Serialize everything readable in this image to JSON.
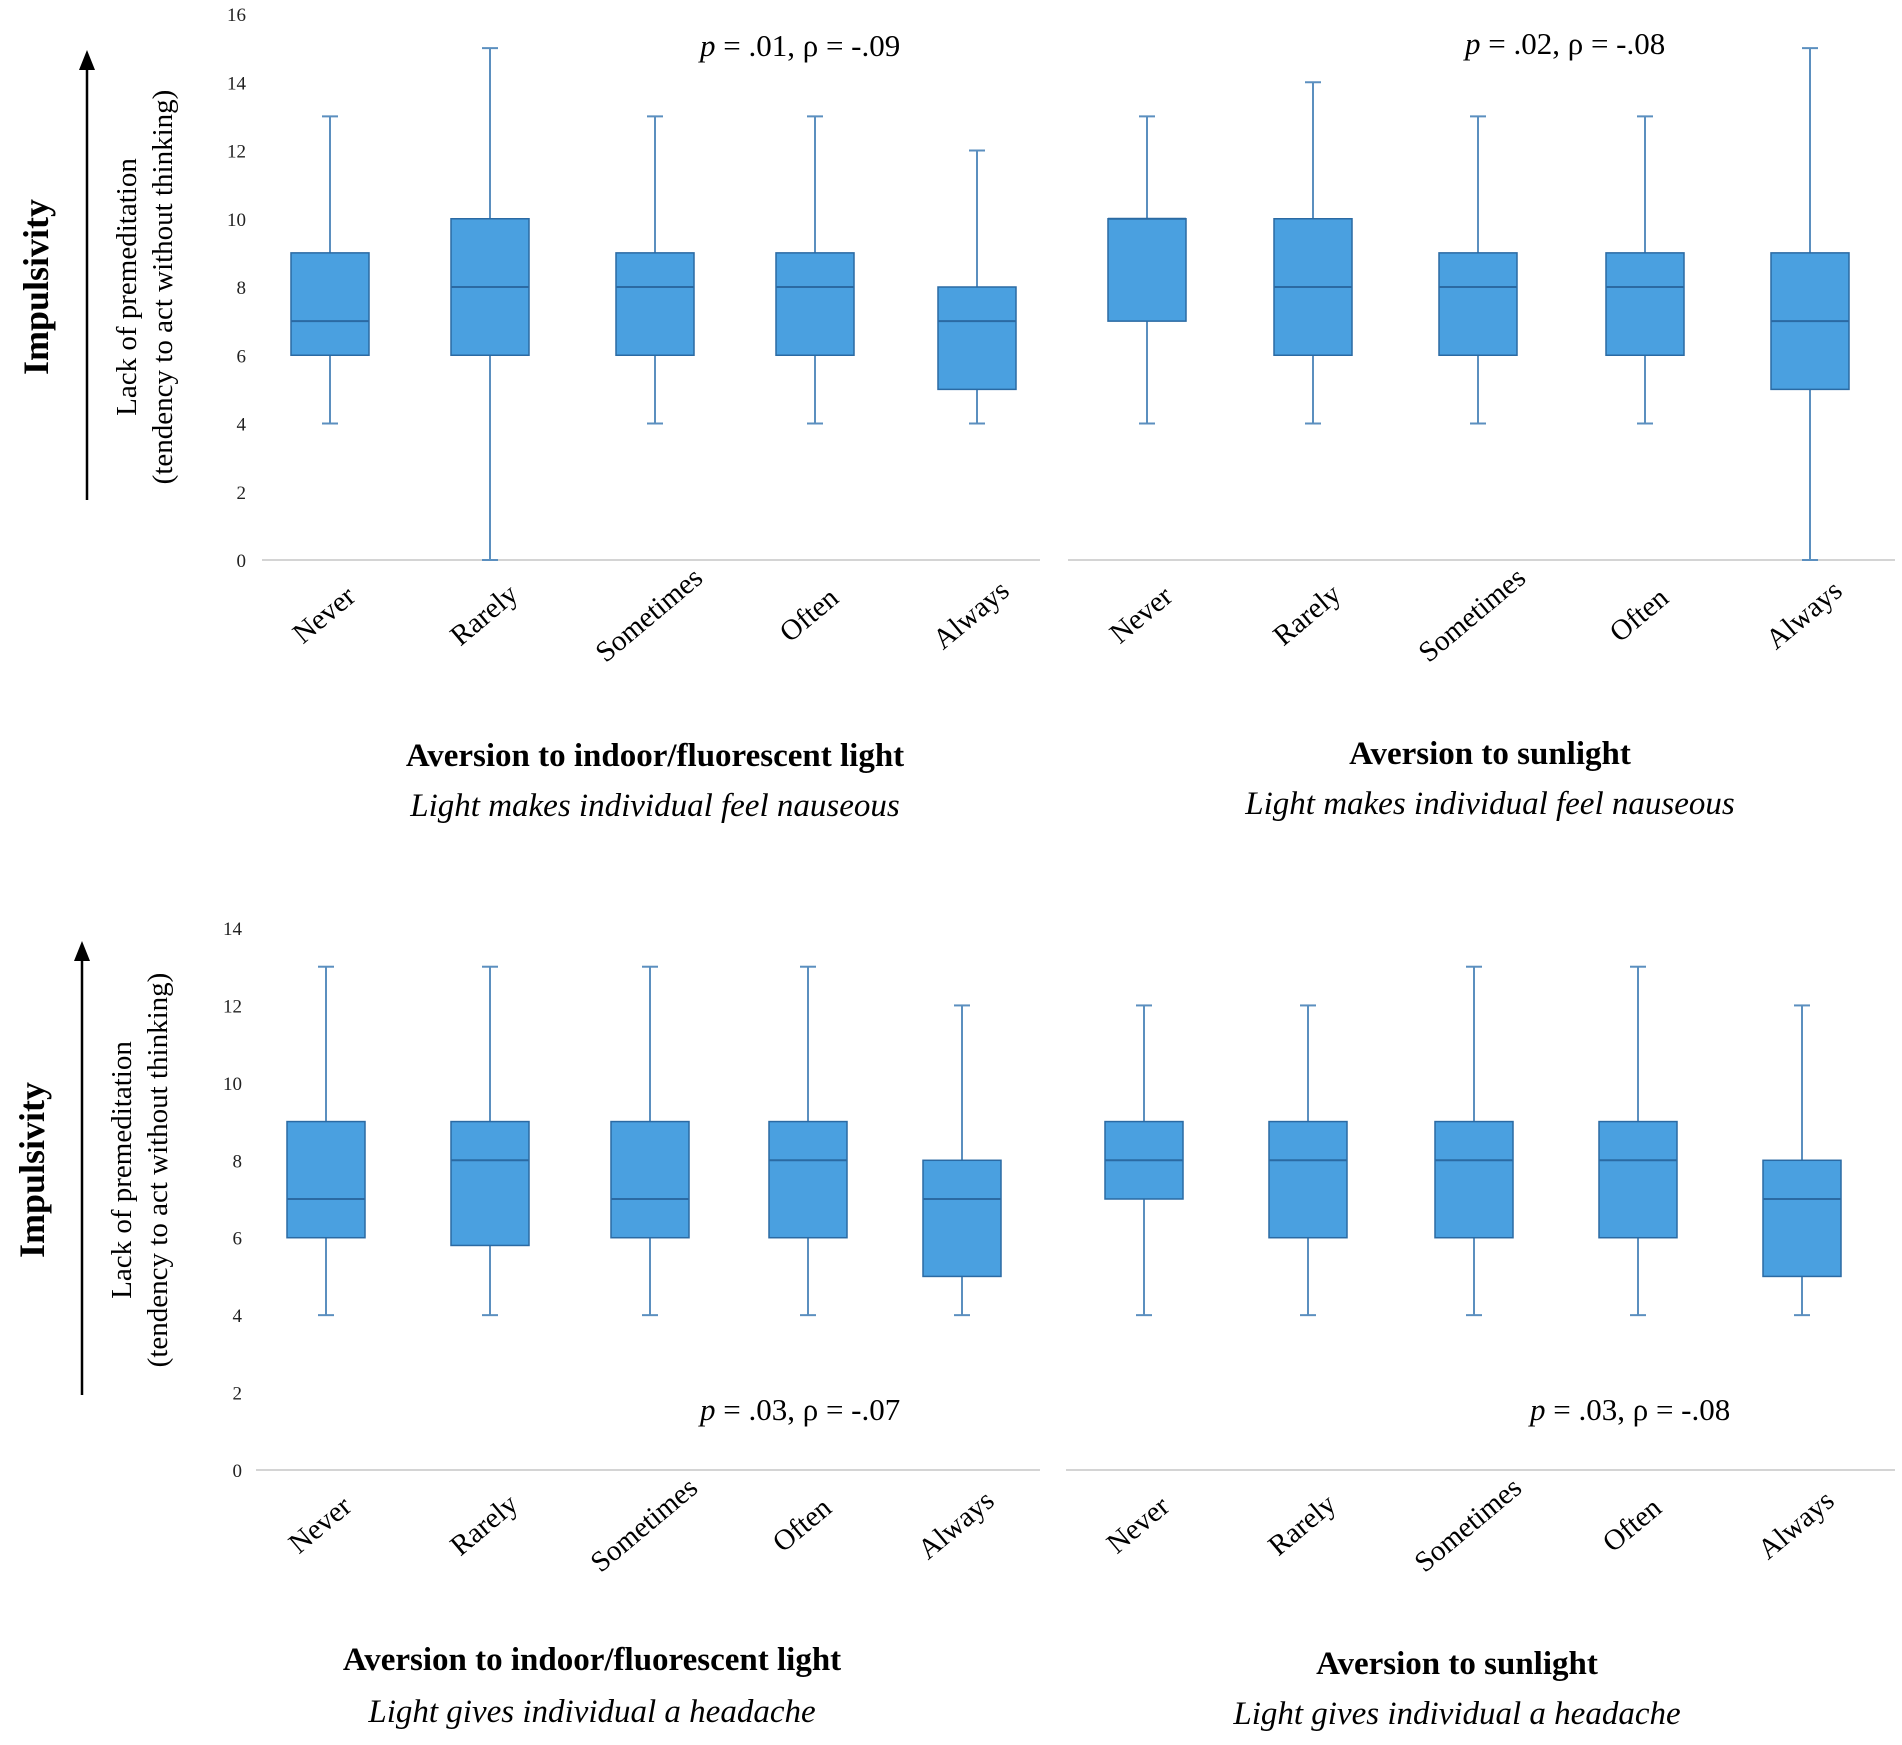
{
  "colors": {
    "box_fill": "#4aa0e0",
    "box_stroke": "#2b6aa3",
    "whisker": "#5b8fbf",
    "axis": "#d4d4d4",
    "text": "#000000"
  },
  "figure": {
    "impulsivity_label": "Impulsivity",
    "ylabel_line1": "Lack of premeditation",
    "ylabel_line2": "(tendency to act without thinking)"
  },
  "chart_data": [
    {
      "type": "box",
      "panel": "top-left",
      "title": "Aversion to indoor/fluorescent light",
      "subtitle": "Light makes individual feel nauseous",
      "stat": "p = .01, ρ = -.09",
      "stat_p": "p",
      "stat_rest": " = .01, ρ = -.09",
      "ylim": [
        0,
        16
      ],
      "yticks": [
        0,
        2,
        4,
        6,
        8,
        10,
        12,
        14,
        16
      ],
      "categories": [
        "Never",
        "Rarely",
        "Sometimes",
        "Often",
        "Always"
      ],
      "boxes": [
        {
          "min": 4,
          "q1": 6,
          "median": 7,
          "q3": 9,
          "max": 13
        },
        {
          "min": 0,
          "q1": 6,
          "median": 8,
          "q3": 10,
          "max": 15
        },
        {
          "min": 4,
          "q1": 6,
          "median": 8,
          "q3": 9,
          "max": 13
        },
        {
          "min": 4,
          "q1": 6,
          "median": 8,
          "q3": 9,
          "max": 13
        },
        {
          "min": 4,
          "q1": 5,
          "median": 7,
          "q3": 8,
          "max": 12
        }
      ]
    },
    {
      "type": "box",
      "panel": "top-right",
      "title": "Aversion to sunlight",
      "subtitle": "Light makes individual feel nauseous",
      "stat": "p = .02, ρ = -.08",
      "stat_p": "p",
      "stat_rest": " = .02, ρ = -.08",
      "ylim": [
        0,
        16
      ],
      "categories": [
        "Never",
        "Rarely",
        "Sometimes",
        "Often",
        "Always"
      ],
      "boxes": [
        {
          "min": 4,
          "q1": 7,
          "median": 10,
          "q3": 10,
          "max": 13
        },
        {
          "min": 4,
          "q1": 6,
          "median": 8,
          "q3": 10,
          "max": 14
        },
        {
          "min": 4,
          "q1": 6,
          "median": 8,
          "q3": 9,
          "max": 13
        },
        {
          "min": 4,
          "q1": 6,
          "median": 8,
          "q3": 9,
          "max": 13
        },
        {
          "min": 0,
          "q1": 5,
          "median": 7,
          "q3": 9,
          "max": 15
        }
      ]
    },
    {
      "type": "box",
      "panel": "bottom-left",
      "title": "Aversion to indoor/fluorescent light",
      "subtitle": "Light gives individual a headache",
      "stat": "p = .03, ρ = -.07",
      "stat_p": "p",
      "stat_rest": " = .03, ρ = -.07",
      "ylim": [
        0,
        14
      ],
      "yticks": [
        0,
        2,
        4,
        6,
        8,
        10,
        12,
        14
      ],
      "categories": [
        "Never",
        "Rarely",
        "Sometimes",
        "Often",
        "Always"
      ],
      "boxes": [
        {
          "min": 4,
          "q1": 6,
          "median": 7,
          "q3": 9,
          "max": 13
        },
        {
          "min": 4,
          "q1": 5.8,
          "median": 8,
          "q3": 9,
          "max": 13
        },
        {
          "min": 4,
          "q1": 6,
          "median": 7,
          "q3": 9,
          "max": 13
        },
        {
          "min": 4,
          "q1": 6,
          "median": 8,
          "q3": 9,
          "max": 13
        },
        {
          "min": 4,
          "q1": 5,
          "median": 7,
          "q3": 8,
          "max": 12
        }
      ]
    },
    {
      "type": "box",
      "panel": "bottom-right",
      "title": "Aversion to sunlight",
      "subtitle": "Light gives individual a headache",
      "stat": "p = .03, ρ = -.08",
      "stat_p": "p",
      "stat_rest": " = .03, ρ = -.08",
      "ylim": [
        0,
        14
      ],
      "categories": [
        "Never",
        "Rarely",
        "Sometimes",
        "Often",
        "Always"
      ],
      "boxes": [
        {
          "min": 4,
          "q1": 7,
          "median": 8,
          "q3": 9,
          "max": 12
        },
        {
          "min": 4,
          "q1": 6,
          "median": 8,
          "q3": 9,
          "max": 12
        },
        {
          "min": 4,
          "q1": 6,
          "median": 8,
          "q3": 9,
          "max": 13
        },
        {
          "min": 4,
          "q1": 6,
          "median": 8,
          "q3": 9,
          "max": 13
        },
        {
          "min": 4,
          "q1": 5,
          "median": 7,
          "q3": 8,
          "max": 12
        }
      ]
    }
  ]
}
